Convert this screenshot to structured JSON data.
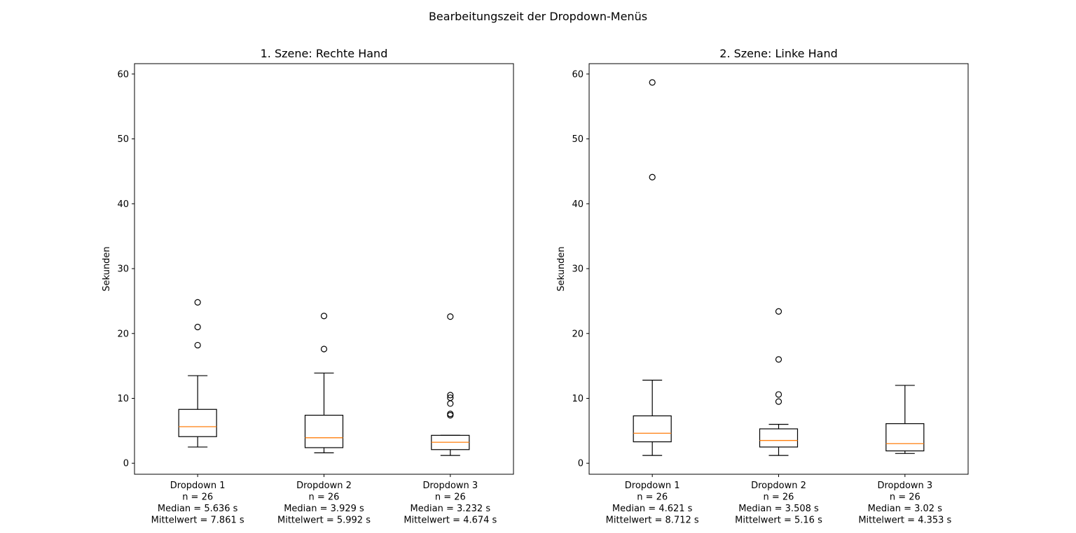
{
  "figure": {
    "suptitle": "Bearbeitungszeit der Dropdown-Menüs"
  },
  "chart_data": [
    {
      "type": "boxplot",
      "title": "1. Szene: Rechte Hand",
      "xlabel": "",
      "ylabel": "Sekunden",
      "ylim": [
        -1.7,
        61.6
      ],
      "yticks": [
        0,
        10,
        20,
        30,
        40,
        50,
        60
      ],
      "categories": [
        {
          "lines": [
            "Dropdown 1",
            "n = 26",
            "Median = 5.636 s",
            "Mittelwert = 7.861 s"
          ]
        },
        {
          "lines": [
            "Dropdown 2",
            "n = 26",
            "Median = 3.929 s",
            "Mittelwert = 5.992 s"
          ]
        },
        {
          "lines": [
            "Dropdown 3",
            "n = 26",
            "Median = 3.232 s",
            "Mittelwert = 4.674 s"
          ]
        }
      ],
      "boxes": [
        {
          "whislo": 2.5,
          "q1": 4.1,
          "med": 5.636,
          "q3": 8.3,
          "whishi": 13.5,
          "fliers": [
            18.2,
            21.0,
            24.8
          ]
        },
        {
          "whislo": 1.6,
          "q1": 2.4,
          "med": 3.929,
          "q3": 7.4,
          "whishi": 13.9,
          "fliers": [
            17.6,
            22.7
          ]
        },
        {
          "whislo": 1.2,
          "q1": 2.1,
          "med": 3.232,
          "q3": 4.3,
          "whishi": 4.3,
          "fliers": [
            7.4,
            7.6,
            9.2,
            10.1,
            10.5,
            22.6
          ]
        }
      ]
    },
    {
      "type": "boxplot",
      "title": "2. Szene: Linke Hand",
      "xlabel": "",
      "ylabel": "Sekunden",
      "ylim": [
        -1.7,
        61.6
      ],
      "yticks": [
        0,
        10,
        20,
        30,
        40,
        50,
        60
      ],
      "categories": [
        {
          "lines": [
            "Dropdown 1",
            "n = 26",
            "Median = 4.621 s",
            "Mittelwert = 8.712 s"
          ]
        },
        {
          "lines": [
            "Dropdown 2",
            "n = 26",
            "Median = 3.508 s",
            "Mittelwert = 5.16 s"
          ]
        },
        {
          "lines": [
            "Dropdown 3",
            "n = 26",
            "Median = 3.02 s",
            "Mittelwert = 4.353 s"
          ]
        }
      ],
      "boxes": [
        {
          "whislo": 1.2,
          "q1": 3.3,
          "med": 4.621,
          "q3": 7.3,
          "whishi": 12.8,
          "fliers": [
            44.1,
            58.7
          ]
        },
        {
          "whislo": 1.2,
          "q1": 2.5,
          "med": 3.508,
          "q3": 5.3,
          "whishi": 6.0,
          "fliers": [
            9.5,
            10.6,
            16.0,
            23.4
          ]
        },
        {
          "whislo": 1.5,
          "q1": 1.9,
          "med": 3.02,
          "q3": 6.1,
          "whishi": 12.0,
          "fliers": []
        }
      ]
    }
  ],
  "colors": {
    "box": "#000000",
    "median": "#ff7f0e",
    "flier": "#000000"
  }
}
